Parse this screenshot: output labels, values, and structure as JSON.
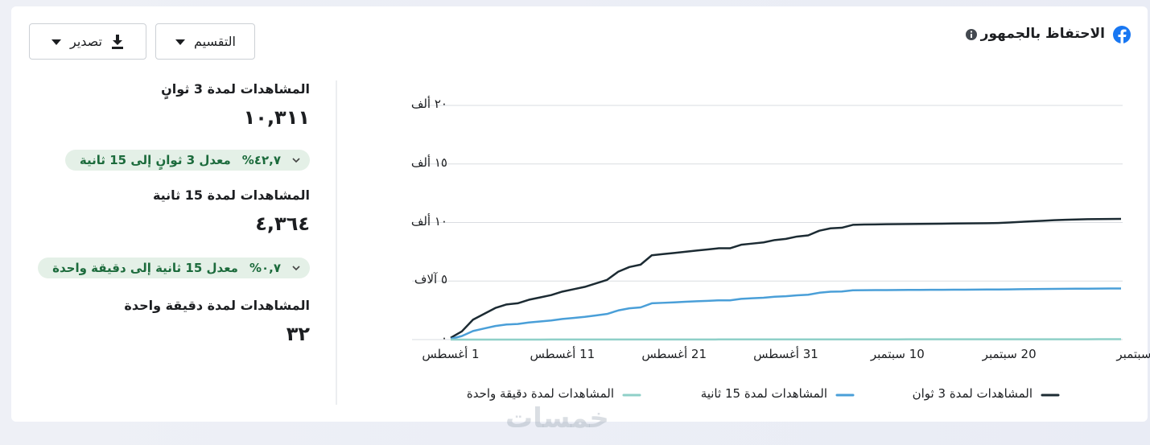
{
  "header": {
    "title": "الاحتفاظ بالجمهور"
  },
  "buttons": {
    "breakdown": "التقسيم",
    "export": "تصدير"
  },
  "stats": [
    {
      "label": "المشاهدات لمدة 3 ثوانٍ",
      "value": "١٠,٣١١"
    },
    {
      "label": "المشاهدات لمدة 15 ثانية",
      "value": "٤,٣٦٤"
    },
    {
      "label": "المشاهدات لمدة دقيقة واحدة",
      "value": "٣٢"
    }
  ],
  "rates": [
    {
      "value": "٤٢,٧%",
      "label": "معدل 3 ثوانٍ إلى 15 ثانية"
    },
    {
      "value": "٠,٧%",
      "label": "معدل 15 ثانية إلى دقيقة واحدة"
    }
  ],
  "chart_data": {
    "type": "line",
    "categories": [
      "1 أغسطس",
      null,
      null,
      null,
      null,
      null,
      null,
      null,
      null,
      null,
      "11 أغسطس",
      null,
      null,
      null,
      null,
      null,
      null,
      null,
      null,
      null,
      "21 أغسطس",
      null,
      null,
      null,
      null,
      null,
      null,
      null,
      null,
      null,
      "31 أغسطس",
      null,
      null,
      null,
      null,
      null,
      null,
      null,
      null,
      null,
      "10 سبتمبر",
      null,
      null,
      null,
      null,
      null,
      null,
      null,
      null,
      null,
      "20 سبتمبر",
      null,
      null,
      null,
      null,
      null,
      null,
      null,
      null,
      null,
      "سبتمبر"
    ],
    "series": [
      {
        "name": "المشاهدات لمدة 3 ثوان",
        "color": "#1c2b33",
        "values": [
          150,
          700,
          1700,
          2200,
          2700,
          3000,
          3100,
          3400,
          3600,
          3800,
          4100,
          4300,
          4500,
          4800,
          5100,
          5800,
          6200,
          6400,
          7200,
          7300,
          7400,
          7500,
          7600,
          7700,
          7800,
          7800,
          8100,
          8200,
          8300,
          8500,
          8600,
          8800,
          8900,
          9300,
          9500,
          9550,
          9800,
          9830,
          9840,
          9850,
          9860,
          9870,
          9880,
          9890,
          9900,
          9910,
          9920,
          9930,
          9940,
          9960,
          10000,
          10050,
          10100,
          10150,
          10200,
          10230,
          10260,
          10280,
          10290,
          10300,
          10311
        ]
      },
      {
        "name": "المشاهدات لمدة 15 ثانية",
        "color": "#4a9fd8",
        "values": [
          60,
          300,
          730,
          950,
          1160,
          1290,
          1330,
          1460,
          1550,
          1630,
          1760,
          1850,
          1940,
          2060,
          2190,
          2490,
          2670,
          2750,
          3100,
          3140,
          3180,
          3230,
          3270,
          3310,
          3350,
          3350,
          3480,
          3530,
          3570,
          3660,
          3700,
          3780,
          3830,
          4000,
          4090,
          4110,
          4210,
          4220,
          4225,
          4230,
          4235,
          4240,
          4245,
          4250,
          4255,
          4260,
          4265,
          4270,
          4275,
          4280,
          4290,
          4300,
          4310,
          4320,
          4330,
          4340,
          4345,
          4350,
          4355,
          4360,
          4364
        ]
      },
      {
        "name": "المشاهدات لمدة دقيقة واحدة",
        "color": "#8fd0c8",
        "values": [
          0,
          1,
          1,
          2,
          2,
          3,
          3,
          4,
          4,
          5,
          5,
          6,
          6,
          7,
          7,
          8,
          8,
          9,
          10,
          10,
          11,
          11,
          12,
          12,
          13,
          13,
          14,
          14,
          15,
          15,
          16,
          16,
          17,
          18,
          18,
          19,
          19,
          20,
          20,
          21,
          21,
          22,
          22,
          23,
          23,
          24,
          24,
          25,
          26,
          26,
          27,
          27,
          28,
          28,
          29,
          29,
          30,
          30,
          31,
          31,
          32
        ]
      }
    ],
    "ylim": [
      0,
      20000
    ],
    "yticks": [
      {
        "value": 0,
        "label": "٠"
      },
      {
        "value": 5000,
        "label": "٥ آلاف"
      },
      {
        "value": 10000,
        "label": "١٠ ألف"
      },
      {
        "value": 15000,
        "label": "١٥ ألف"
      },
      {
        "value": 20000,
        "label": "٢٠ ألف"
      }
    ],
    "grid": true
  },
  "watermark": "خمسات"
}
